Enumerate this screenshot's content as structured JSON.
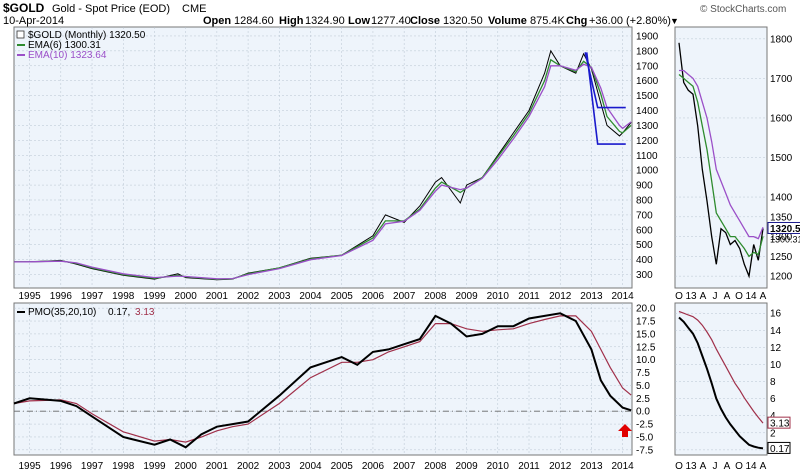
{
  "header": {
    "symbol": "$GOLD",
    "name": "Gold - Spot Price (EOD)",
    "exchange": "CME",
    "date": "10-Apr-2014",
    "open_label": "Open",
    "open": "1284.60",
    "high_label": "High",
    "high": "1324.90",
    "low_label": "Low",
    "low": "1277.40",
    "close_label": "Close",
    "close": "1320.50",
    "volume_label": "Volume",
    "volume": "875.4K",
    "chg_label": "Chg",
    "chg": "+36.00 (+2.80%)",
    "watermark": "© StockCharts.com",
    "arrow_marker": "▼"
  },
  "legend": {
    "price_series": "$GOLD (Monthly) 1320.50",
    "ema6": "EMA(6) 1300.31",
    "ema10": "EMA(10) 1323.64",
    "pmo_label": "PMO(35,20,10)",
    "pmo_value": "0.17,",
    "pmo_signal": "3.13"
  },
  "colors": {
    "price": "#000000",
    "ema6": "#2e8b2e",
    "ema10": "#9b4fc8",
    "pmo": "#000000",
    "pmo_signal": "#a0304a",
    "channel": "#1a1acc",
    "arrow": "#e00000",
    "panel_bg": "#eef4fb",
    "grid": "#b8c4d0",
    "close_tag": "#1a1a8c"
  },
  "icons": {
    "checkbox": "checkbox-icon",
    "arrow": "red-up-arrow-icon"
  },
  "chart_data": [
    {
      "type": "line",
      "name": "monthly-price-panel",
      "xlabel": "",
      "ylabel": "",
      "x_ticks": [
        "1995",
        "1996",
        "1997",
        "1998",
        "1999",
        "2000",
        "2001",
        "2002",
        "2003",
        "2004",
        "2005",
        "2006",
        "2007",
        "2008",
        "2009",
        "2010",
        "2011",
        "2012",
        "2013",
        "2014"
      ],
      "y_ticks": [
        300,
        400,
        500,
        600,
        700,
        800,
        900,
        1000,
        1100,
        1200,
        1300,
        1400,
        1500,
        1600,
        1700,
        1800,
        1900
      ],
      "ylim": [
        210,
        1960
      ],
      "xlim": [
        1994.5,
        2014.3
      ],
      "x": [
        1994.5,
        1995,
        1996,
        1996.5,
        1997,
        1998,
        1999,
        1999.75,
        2000,
        2001,
        2001.5,
        2002,
        2003,
        2004,
        2005,
        2006,
        2006.4,
        2007,
        2007.5,
        2008,
        2008.2,
        2008.8,
        2009,
        2009.5,
        2010,
        2010.5,
        2011,
        2011.5,
        2011.7,
        2012,
        2012.5,
        2012.75,
        2013,
        2013.3,
        2013.5,
        2013.9,
        2014,
        2014.27
      ],
      "series": [
        {
          "name": "$GOLD (Monthly)",
          "values": [
            385,
            385,
            395,
            370,
            340,
            295,
            270,
            305,
            280,
            265,
            270,
            310,
            345,
            410,
            430,
            560,
            700,
            650,
            760,
            920,
            950,
            780,
            900,
            950,
            1100,
            1250,
            1400,
            1650,
            1800,
            1700,
            1650,
            1780,
            1680,
            1450,
            1300,
            1230,
            1250,
            1320.5
          ]
        },
        {
          "name": "EMA(6)",
          "values": [
            385,
            386,
            392,
            375,
            345,
            300,
            275,
            295,
            285,
            268,
            272,
            305,
            345,
            405,
            430,
            545,
            660,
            660,
            740,
            880,
            920,
            850,
            880,
            950,
            1090,
            1230,
            1380,
            1600,
            1740,
            1700,
            1660,
            1730,
            1690,
            1510,
            1360,
            1260,
            1250,
            1300.31
          ]
        },
        {
          "name": "EMA(10)",
          "values": [
            385,
            386,
            390,
            378,
            350,
            305,
            280,
            290,
            287,
            272,
            273,
            300,
            340,
            400,
            428,
            530,
            640,
            658,
            730,
            860,
            900,
            870,
            880,
            945,
            1070,
            1210,
            1360,
            1560,
            1700,
            1700,
            1670,
            1710,
            1690,
            1550,
            1420,
            1300,
            1280,
            1323.64
          ]
        }
      ],
      "channel": {
        "top": 1420,
        "bottom": 1175,
        "x_start": 2013.2,
        "x_end": 2014.1,
        "peak": 1790,
        "peak_x": 2012.85
      }
    },
    {
      "type": "line",
      "name": "monthly-pmo-panel",
      "xlabel": "",
      "ylabel": "",
      "x_ticks": [
        "1995",
        "1996",
        "1997",
        "1998",
        "1999",
        "2000",
        "2001",
        "2002",
        "2003",
        "2004",
        "2005",
        "2006",
        "2007",
        "2008",
        "2009",
        "2010",
        "2011",
        "2012",
        "2013",
        "2014"
      ],
      "y_ticks": [
        -7.5,
        -5.0,
        -2.5,
        0.0,
        2.5,
        5.0,
        7.5,
        10.0,
        12.5,
        15.0,
        17.5,
        20.0
      ],
      "ylim": [
        -8.5,
        21
      ],
      "xlim": [
        1994.5,
        2014.3
      ],
      "x": [
        1994.5,
        1995,
        1996,
        1996.5,
        1997,
        1998,
        1999,
        1999.5,
        2000,
        2000.5,
        2001,
        2001.5,
        2002,
        2003,
        2004,
        2005,
        2005.5,
        2006,
        2006.5,
        2007,
        2007.5,
        2008,
        2008.5,
        2009,
        2009.5,
        2010,
        2010.5,
        2011,
        2011.5,
        2012,
        2012.5,
        2013,
        2013.3,
        2013.6,
        2014,
        2014.27
      ],
      "series": [
        {
          "name": "PMO",
          "values": [
            1.5,
            2.5,
            2.0,
            1.0,
            -1.0,
            -5.0,
            -6.5,
            -5.5,
            -7.0,
            -4.5,
            -3.0,
            -2.5,
            -2.0,
            3.0,
            8.5,
            10.5,
            9.0,
            11.5,
            12.0,
            13.0,
            14.0,
            18.5,
            17.0,
            14.5,
            15.0,
            16.5,
            16.5,
            18.0,
            18.5,
            19.0,
            17.5,
            12.0,
            6.0,
            3.0,
            0.7,
            0.17
          ]
        },
        {
          "name": "Signal",
          "values": [
            1.5,
            2.0,
            2.2,
            1.5,
            -0.5,
            -4.0,
            -5.8,
            -5.5,
            -6.0,
            -5.0,
            -3.8,
            -3.0,
            -2.5,
            1.5,
            6.5,
            9.5,
            9.5,
            10.0,
            11.5,
            12.5,
            13.5,
            17.0,
            17.0,
            16.0,
            15.5,
            15.8,
            16.0,
            17.0,
            17.8,
            18.5,
            18.5,
            15.5,
            12.0,
            8.5,
            4.5,
            3.13
          ]
        }
      ],
      "markers": {
        "zero_line": 0.0
      }
    },
    {
      "type": "line",
      "name": "zoom-price-panel",
      "xlabel": "",
      "ylabel": "",
      "x_ticks": [
        "O",
        "13",
        "A",
        "J",
        "A",
        "O",
        "14",
        "A"
      ],
      "y_ticks": [
        1200,
        1250,
        1300,
        1350,
        1400,
        1500,
        1600,
        1700,
        1800
      ],
      "ylim": [
        1170,
        1830
      ],
      "x": [
        0,
        1,
        2,
        3,
        4,
        5,
        6,
        7,
        8,
        9,
        10,
        11,
        12,
        13,
        14,
        15,
        16,
        17,
        18
      ],
      "series": [
        {
          "name": "$GOLD (Monthly)",
          "values": [
            1790,
            1690,
            1670,
            1660,
            1580,
            1470,
            1390,
            1300,
            1230,
            1320,
            1310,
            1280,
            1290,
            1270,
            1230,
            1200,
            1280,
            1240,
            1320.5
          ]
        },
        {
          "name": "EMA(6)",
          "values": [
            1710,
            1700,
            1690,
            1680,
            1640,
            1580,
            1520,
            1440,
            1360,
            1340,
            1320,
            1300,
            1300,
            1285,
            1270,
            1250,
            1260,
            1255,
            1300.31
          ]
        },
        {
          "name": "EMA(10)",
          "values": [
            1720,
            1720,
            1710,
            1700,
            1680,
            1640,
            1600,
            1540,
            1470,
            1440,
            1410,
            1380,
            1360,
            1340,
            1320,
            1300,
            1300,
            1295,
            1323.64
          ]
        }
      ],
      "labels": {
        "close_tag": "1320.50",
        "ema_tag": "1300.31"
      }
    },
    {
      "type": "line",
      "name": "zoom-pmo-panel",
      "xlabel": "",
      "ylabel": "",
      "x_ticks": [
        "O",
        "13",
        "A",
        "J",
        "A",
        "O",
        "14",
        "A"
      ],
      "y_ticks": [
        0,
        2,
        4,
        6,
        8,
        10,
        12,
        14,
        16
      ],
      "ylim": [
        -0.6,
        17.2
      ],
      "x": [
        0,
        1,
        2,
        3,
        4,
        5,
        6,
        7,
        8,
        9,
        10,
        11,
        12,
        13,
        14,
        15,
        16,
        17,
        18
      ],
      "series": [
        {
          "name": "PMO",
          "values": [
            15.5,
            15.0,
            14.3,
            13.6,
            12.5,
            11.0,
            9.5,
            7.8,
            6.0,
            4.8,
            3.8,
            3.0,
            2.3,
            1.6,
            1.1,
            0.6,
            0.4,
            0.25,
            0.17
          ]
        },
        {
          "name": "Signal",
          "values": [
            16.2,
            16.0,
            15.8,
            15.6,
            15.2,
            14.6,
            13.8,
            12.9,
            11.8,
            10.8,
            9.8,
            8.8,
            7.8,
            7.0,
            6.1,
            5.3,
            4.5,
            3.8,
            3.13
          ]
        }
      ],
      "labels": {
        "signal_tag": "3.13",
        "pmo_tag": "0.17"
      }
    }
  ]
}
